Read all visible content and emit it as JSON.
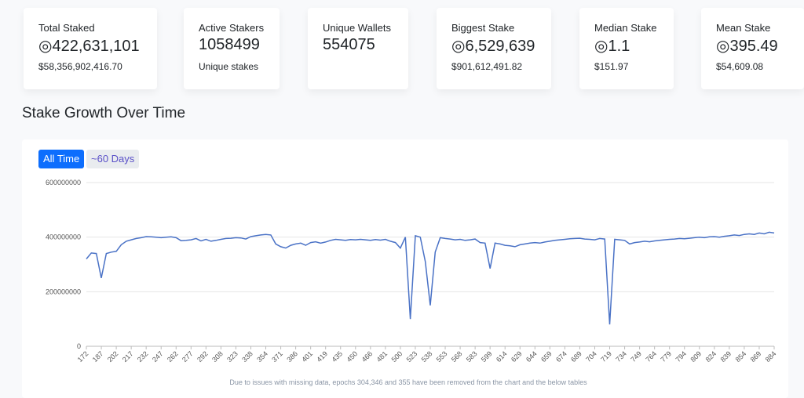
{
  "cards": [
    {
      "title": "Total Staked",
      "value": "◎422,631,101",
      "sub": "$58,356,902,416.70"
    },
    {
      "title": "Active Stakers",
      "value": "1058499",
      "sub": "Unique stakes"
    },
    {
      "title": "Unique Wallets",
      "value": "554075"
    },
    {
      "title": "Biggest Stake",
      "value": "◎6,529,639",
      "sub": "$901,612,491.82"
    },
    {
      "title": "Median Stake",
      "value": "◎1.1",
      "sub": "$151.97"
    },
    {
      "title": "Mean Stake",
      "value": "◎395.49",
      "sub": "$54,609.08"
    }
  ],
  "section_title": "Stake Growth Over Time",
  "buttons": [
    "All Time",
    "~60 Days"
  ],
  "footnote": "Due to issues with missing data, epochs 304,346 and 355 have been removed from the chart and the below tables",
  "chart_data": {
    "type": "line",
    "color": "#4a72c6",
    "grid": true,
    "ylim": [
      0,
      600000000
    ],
    "yticks": [
      0,
      200000000,
      400000000,
      600000000
    ],
    "categories": [
      "172",
      null,
      null,
      "187",
      null,
      null,
      "202",
      null,
      null,
      "217",
      null,
      null,
      "232",
      null,
      null,
      "247",
      null,
      null,
      "262",
      null,
      null,
      "277",
      null,
      null,
      "292",
      null,
      null,
      "308",
      null,
      null,
      "323",
      null,
      null,
      "338",
      null,
      null,
      "354",
      null,
      null,
      "371",
      null,
      null,
      "386",
      null,
      null,
      "401",
      null,
      null,
      "419",
      null,
      null,
      "435",
      null,
      null,
      "450",
      null,
      null,
      "466",
      null,
      null,
      "481",
      null,
      null,
      "500",
      null,
      null,
      "523",
      null,
      null,
      "538",
      null,
      null,
      "553",
      null,
      null,
      "568",
      null,
      null,
      "583",
      null,
      null,
      "599",
      null,
      null,
      "614",
      null,
      null,
      "629",
      null,
      null,
      "644",
      null,
      null,
      "659",
      null,
      null,
      "674",
      null,
      null,
      "689",
      null,
      null,
      "704",
      null,
      null,
      "719",
      null,
      null,
      "734",
      null,
      null,
      "749",
      null,
      null,
      "764",
      null,
      null,
      "779",
      null,
      null,
      "794",
      null,
      null,
      "809",
      null,
      null,
      "824",
      null,
      null,
      "839",
      null,
      null,
      "854",
      null,
      null,
      "869",
      null,
      null,
      "884"
    ],
    "values": [
      320000000,
      342000000,
      340000000,
      250000000,
      340000000,
      345000000,
      348000000,
      372000000,
      385000000,
      390000000,
      395000000,
      398000000,
      402000000,
      401000000,
      400000000,
      398000000,
      400000000,
      401000000,
      398000000,
      387000000,
      388000000,
      390000000,
      395000000,
      386000000,
      392000000,
      385000000,
      388000000,
      392000000,
      395000000,
      396000000,
      398000000,
      397000000,
      393000000,
      402000000,
      405000000,
      408000000,
      410000000,
      408000000,
      375000000,
      365000000,
      360000000,
      370000000,
      375000000,
      378000000,
      370000000,
      380000000,
      383000000,
      378000000,
      382000000,
      388000000,
      392000000,
      390000000,
      388000000,
      391000000,
      390000000,
      392000000,
      390000000,
      388000000,
      391000000,
      389000000,
      392000000,
      385000000,
      380000000,
      360000000,
      400000000,
      100000000,
      405000000,
      400000000,
      310000000,
      150000000,
      345000000,
      398000000,
      395000000,
      393000000,
      390000000,
      392000000,
      388000000,
      390000000,
      393000000,
      380000000,
      378000000,
      285000000,
      378000000,
      375000000,
      370000000,
      368000000,
      365000000,
      372000000,
      375000000,
      378000000,
      380000000,
      378000000,
      382000000,
      385000000,
      388000000,
      390000000,
      392000000,
      394000000,
      395000000,
      396000000,
      393000000,
      392000000,
      390000000,
      395000000,
      393000000,
      80000000,
      392000000,
      390000000,
      388000000,
      375000000,
      380000000,
      382000000,
      385000000,
      383000000,
      386000000,
      388000000,
      390000000,
      392000000,
      393000000,
      395000000,
      394000000,
      396000000,
      398000000,
      400000000,
      398000000,
      401000000,
      402000000,
      400000000,
      403000000,
      405000000,
      408000000,
      406000000,
      410000000,
      412000000,
      410000000,
      415000000,
      412000000,
      418000000,
      415000000
    ]
  }
}
